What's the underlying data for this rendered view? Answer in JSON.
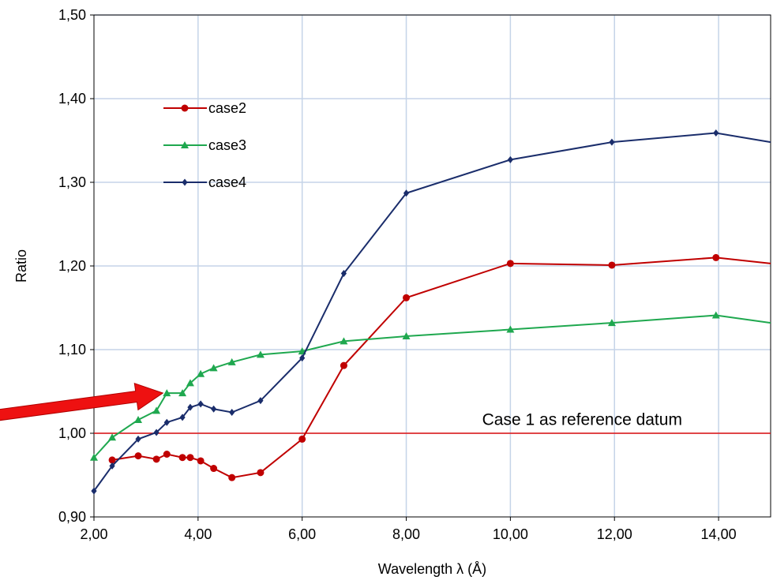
{
  "chart_data": {
    "type": "line",
    "xlabel": "Wavelength λ (Å)",
    "ylabel": "Ratio",
    "xlim": [
      2.0,
      15.0
    ],
    "ylim": [
      0.9,
      1.5
    ],
    "xticks": [
      2,
      4,
      6,
      8,
      10,
      12,
      14
    ],
    "xtick_labels": [
      "2,00",
      "4,00",
      "6,00",
      "8,00",
      "10,00",
      "12,00",
      "14,00"
    ],
    "yticks": [
      0.9,
      1.0,
      1.1,
      1.2,
      1.3,
      1.4,
      1.5
    ],
    "ytick_labels": [
      "0,90",
      "1,00",
      "1,10",
      "1,20",
      "1,30",
      "1,40",
      "1,50"
    ],
    "grid": true,
    "legend_position": "top-left",
    "series": [
      {
        "name": "case2",
        "color": "#c00000",
        "marker": "circle",
        "x": [
          2.35,
          2.85,
          3.2,
          3.4,
          3.7,
          3.85,
          4.05,
          4.3,
          4.65,
          5.2,
          6.0,
          6.8,
          8.0,
          10.0,
          11.95,
          13.95,
          15.0
        ],
        "y": [
          0.968,
          0.973,
          0.969,
          0.975,
          0.971,
          0.971,
          0.967,
          0.958,
          0.947,
          0.953,
          0.993,
          1.081,
          1.162,
          1.203,
          1.201,
          1.21,
          1.203
        ]
      },
      {
        "name": "case3",
        "color": "#1fa84f",
        "marker": "triangle",
        "x": [
          2.0,
          2.35,
          2.85,
          3.2,
          3.4,
          3.7,
          3.85,
          4.05,
          4.3,
          4.65,
          5.2,
          6.0,
          6.8,
          8.0,
          10.0,
          11.95,
          13.95,
          15.0
        ],
        "y": [
          0.971,
          0.995,
          1.016,
          1.027,
          1.048,
          1.048,
          1.06,
          1.071,
          1.078,
          1.085,
          1.094,
          1.098,
          1.11,
          1.116,
          1.124,
          1.132,
          1.141,
          1.132
        ]
      },
      {
        "name": "case4",
        "color": "#1a2d6b",
        "marker": "diamond",
        "x": [
          2.0,
          2.35,
          2.85,
          3.2,
          3.4,
          3.7,
          3.85,
          4.05,
          4.3,
          4.65,
          5.2,
          6.0,
          6.8,
          8.0,
          10.0,
          11.95,
          13.95,
          15.0
        ],
        "y": [
          0.931,
          0.961,
          0.993,
          1.001,
          1.013,
          1.019,
          1.031,
          1.035,
          1.029,
          1.025,
          1.039,
          1.09,
          1.191,
          1.287,
          1.327,
          1.348,
          1.359,
          1.348
        ]
      }
    ],
    "reference_line": {
      "y": 1.0,
      "x_from": 2.0,
      "x_to": 15.0,
      "color": "#e01010"
    },
    "annotation": {
      "text": "Case 1 as reference datum",
      "x": 11.0,
      "y": 1.01
    },
    "arrow": {
      "color": "#ee1111",
      "target_x": 3.4,
      "target_y": 1.05
    }
  }
}
